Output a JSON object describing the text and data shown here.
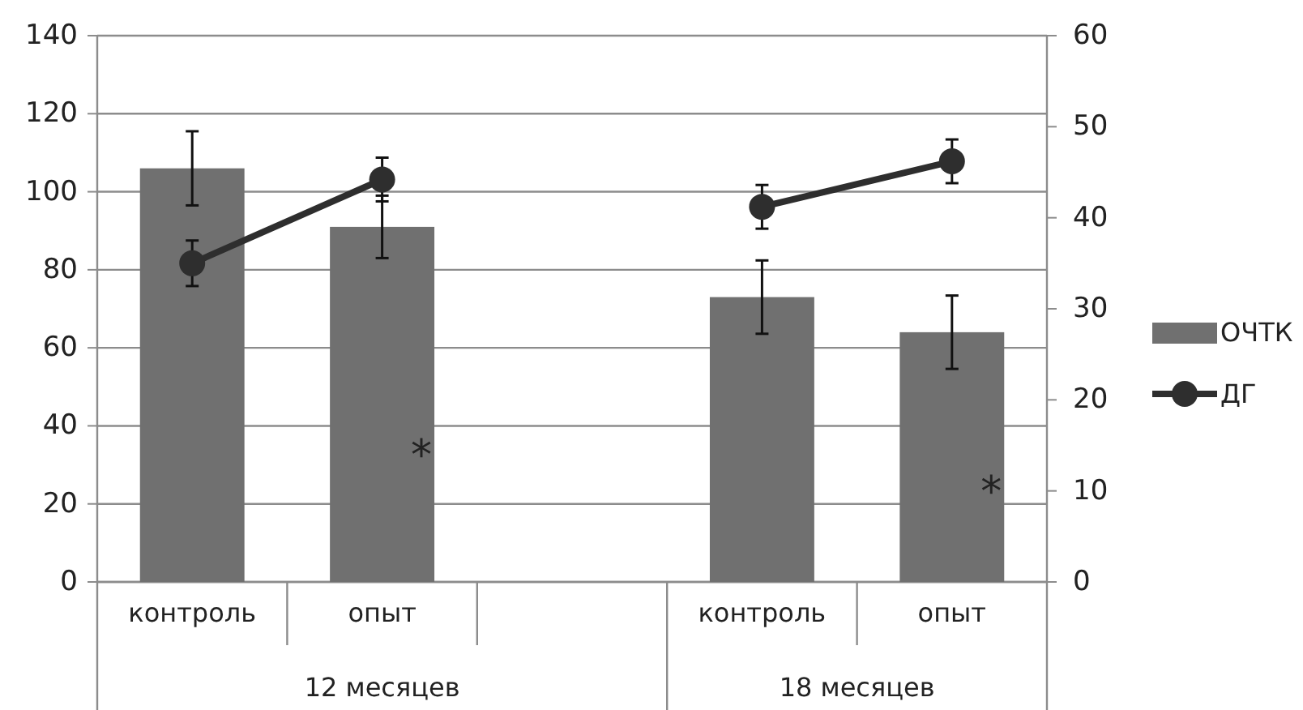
{
  "chart_data": {
    "type": "bar",
    "categories": [
      "контроль",
      "опыт",
      null,
      "контроль",
      "опыт"
    ],
    "series": [
      {
        "name": "ОЧТК",
        "color": "#707070",
        "values": [
          106,
          91,
          null,
          73,
          64
        ],
        "errors": [
          9.5,
          8,
          null,
          9.4,
          9.4
        ]
      },
      {
        "name": "ДГ",
        "type": "line",
        "axis": "y2",
        "color": "#2e2e2e",
        "values": [
          35,
          44.2,
          null,
          41.2,
          46.2
        ],
        "errors": [
          2.5,
          2.4,
          null,
          2.4,
          2.4
        ]
      }
    ],
    "ylim": [
      0,
      140
    ],
    "yticks": [
      0,
      20,
      40,
      60,
      80,
      100,
      120,
      140
    ],
    "y2lim": [
      0,
      60
    ],
    "y2ticks": [
      0,
      10,
      20,
      30,
      40,
      50,
      60
    ],
    "grid": "y",
    "legend": "right",
    "marker": "circle",
    "annotations": [
      "12 месяцев",
      "18 месяцев",
      "*",
      "*"
    ]
  }
}
